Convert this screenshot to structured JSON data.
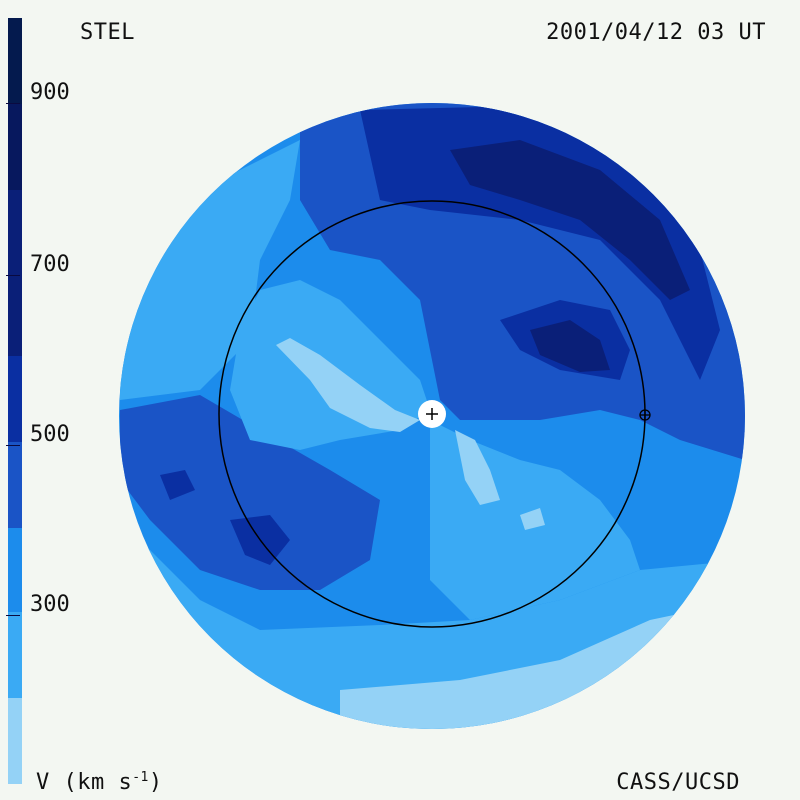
{
  "header": {
    "source": "STEL",
    "timestamp": "2001/04/12 03 UT"
  },
  "footer": {
    "unit_prefix": "V (km s",
    "unit_exponent": "-1",
    "unit_suffix": ")",
    "credit": "CASS/UCSD"
  },
  "colorbar": {
    "ticks": [
      "900",
      "700",
      "500",
      "300"
    ],
    "colors": [
      "#041a4e",
      "#0a1f78",
      "#0a2fa2",
      "#1a54c6",
      "#0e6ddc",
      "#1c8cec",
      "#3aaaf4",
      "#94d2f6"
    ]
  },
  "map_colors": {
    "lightest": "#94d2f6",
    "light": "#3aaaf4",
    "mid": "#1c8cec",
    "midDark": "#0e6ddc",
    "dark": "#1a54c6",
    "darker": "#0a2fa2",
    "darkest": "#0a1f78",
    "sun": "#ffffff",
    "orbit": "#000000"
  }
}
